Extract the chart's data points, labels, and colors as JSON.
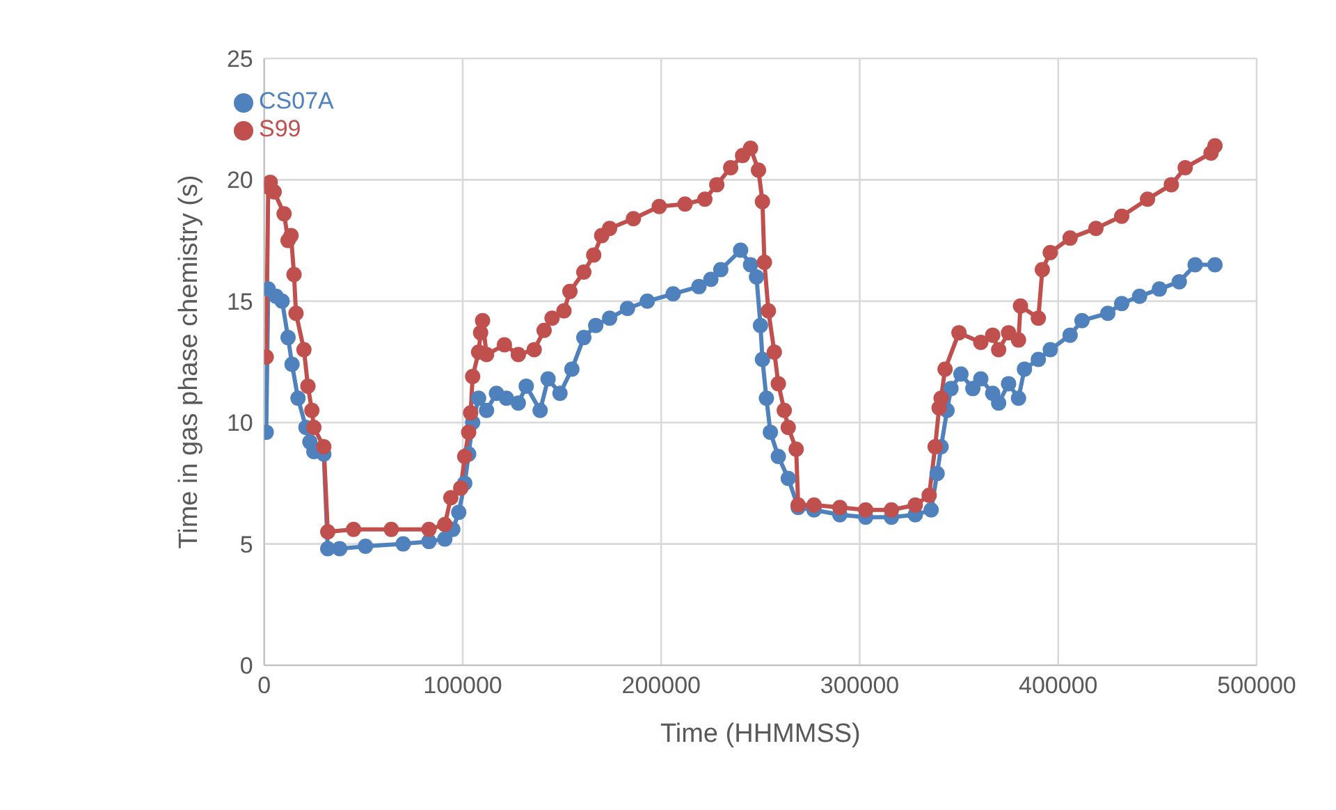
{
  "chart_data": {
    "type": "line",
    "xlabel": "Time (HHMMSS)",
    "ylabel": "Time in gas phase chemistry (s)",
    "xlim": [
      0,
      500000
    ],
    "xticks": [
      0,
      100000,
      200000,
      300000,
      400000,
      500000
    ],
    "ylim": [
      0,
      25
    ],
    "yticks": [
      0,
      5,
      10,
      15,
      20,
      25
    ],
    "grid": true,
    "legend": "top left",
    "marker": "circle",
    "line_style": "solid",
    "series": [
      {
        "name": "CS07A",
        "color": "#4f81bd",
        "x": [
          1000,
          2000,
          6000,
          9000,
          12000,
          14000,
          17000,
          21000,
          23000,
          25000,
          30000,
          32000,
          38000,
          51000,
          70000,
          83000,
          91000,
          95000,
          98000,
          101000,
          103000,
          105000,
          108000,
          112000,
          117000,
          122000,
          128000,
          132000,
          139000,
          143000,
          149000,
          155000,
          161000,
          167000,
          174000,
          183000,
          193000,
          206000,
          219000,
          225000,
          230000,
          240000,
          245000,
          248000,
          250000,
          251000,
          253000,
          255000,
          259000,
          264000,
          269000,
          277000,
          290000,
          303000,
          316000,
          328000,
          336000,
          339000,
          341000,
          344000,
          346000,
          351000,
          357000,
          361000,
          367000,
          370000,
          375000,
          380000,
          383000,
          390000,
          396000,
          406000,
          412000,
          425000,
          432000,
          441000,
          451000,
          461000,
          469000,
          479000
        ],
        "values": [
          9.6,
          15.5,
          15.2,
          15.0,
          13.5,
          12.4,
          11.0,
          9.8,
          9.2,
          8.8,
          8.7,
          4.8,
          4.8,
          4.9,
          5.0,
          5.1,
          5.2,
          5.6,
          6.3,
          7.5,
          8.7,
          10.0,
          11.0,
          10.5,
          11.2,
          11.0,
          10.8,
          11.5,
          10.5,
          11.8,
          11.2,
          12.2,
          13.5,
          14.0,
          14.3,
          14.7,
          15.0,
          15.3,
          15.6,
          15.9,
          16.3,
          17.1,
          16.5,
          16.0,
          14.0,
          12.6,
          11.0,
          9.6,
          8.6,
          7.7,
          6.5,
          6.4,
          6.2,
          6.1,
          6.1,
          6.2,
          6.4,
          7.9,
          9.0,
          10.5,
          11.4,
          12.0,
          11.4,
          11.8,
          11.2,
          10.8,
          11.6,
          11.0,
          12.2,
          12.6,
          13.0,
          13.6,
          14.2,
          14.5,
          14.9,
          15.2,
          15.5,
          15.8,
          16.5,
          16.5
        ]
      },
      {
        "name": "S99",
        "color": "#c0504d",
        "x": [
          1000,
          2000,
          3000,
          5000,
          10000,
          12000,
          13500,
          15000,
          16000,
          20000,
          22000,
          24000,
          25000,
          30000,
          32000,
          45000,
          64000,
          83000,
          91000,
          94000,
          99000,
          101000,
          103000,
          104000,
          105000,
          108000,
          109000,
          110000,
          112000,
          121000,
          128000,
          136000,
          141000,
          145000,
          151000,
          154000,
          161000,
          166000,
          170000,
          174000,
          186000,
          199000,
          212000,
          222000,
          228000,
          235000,
          241000,
          245000,
          249000,
          251000,
          252000,
          254000,
          257000,
          259000,
          262000,
          264000,
          268000,
          269000,
          277000,
          290000,
          303000,
          316000,
          328000,
          335000,
          338000,
          340000,
          341000,
          343000,
          350000,
          361000,
          367000,
          370000,
          375000,
          380000,
          381000,
          390000,
          392000,
          396000,
          406000,
          419000,
          432000,
          445000,
          457000,
          464000,
          477000,
          479000
        ],
        "values": [
          12.7,
          19.7,
          19.9,
          19.5,
          18.6,
          17.5,
          17.7,
          16.1,
          14.5,
          13.0,
          11.5,
          10.5,
          9.8,
          9.0,
          5.5,
          5.6,
          5.6,
          5.6,
          5.8,
          6.9,
          7.3,
          8.6,
          9.6,
          10.4,
          11.9,
          12.9,
          13.7,
          14.2,
          12.8,
          13.2,
          12.8,
          13.0,
          13.8,
          14.3,
          14.6,
          15.4,
          16.2,
          16.9,
          17.7,
          18.0,
          18.4,
          18.9,
          19.0,
          19.2,
          19.8,
          20.5,
          21.0,
          21.3,
          20.4,
          19.1,
          16.6,
          14.6,
          12.9,
          11.6,
          10.5,
          9.8,
          8.9,
          6.6,
          6.6,
          6.5,
          6.4,
          6.4,
          6.6,
          7.0,
          9.0,
          10.6,
          11.0,
          12.2,
          13.7,
          13.3,
          13.6,
          13.0,
          13.7,
          13.4,
          14.8,
          14.3,
          16.3,
          17.0,
          17.6,
          18.0,
          18.5,
          19.2,
          19.8,
          20.5,
          21.1,
          21.4
        ]
      }
    ]
  }
}
